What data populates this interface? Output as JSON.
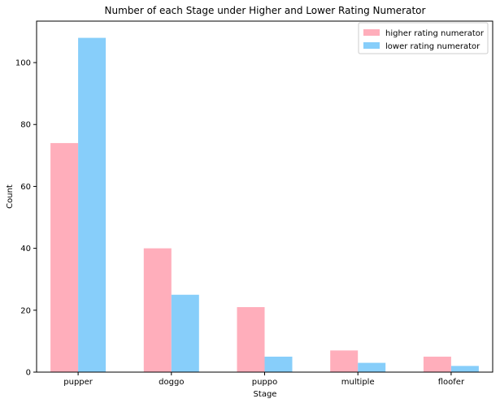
{
  "chart_data": {
    "type": "bar",
    "title": "Number of each Stage under Higher and Lower Rating Numerator",
    "xlabel": "Stage",
    "ylabel": "Count",
    "categories": [
      "pupper",
      "doggo",
      "puppo",
      "multiple",
      "floofer"
    ],
    "series": [
      {
        "name": "higher rating numerator",
        "values": [
          74,
          40,
          21,
          7,
          5
        ],
        "color": "#ffaebb"
      },
      {
        "name": "lower rating numerator",
        "values": [
          108,
          25,
          5,
          3,
          2
        ],
        "color": "#87cefa"
      }
    ],
    "ylim": [
      0,
      113.4
    ],
    "yticks": [
      0,
      20,
      40,
      60,
      80,
      100
    ],
    "grid": false,
    "legend_position": "top-right"
  }
}
